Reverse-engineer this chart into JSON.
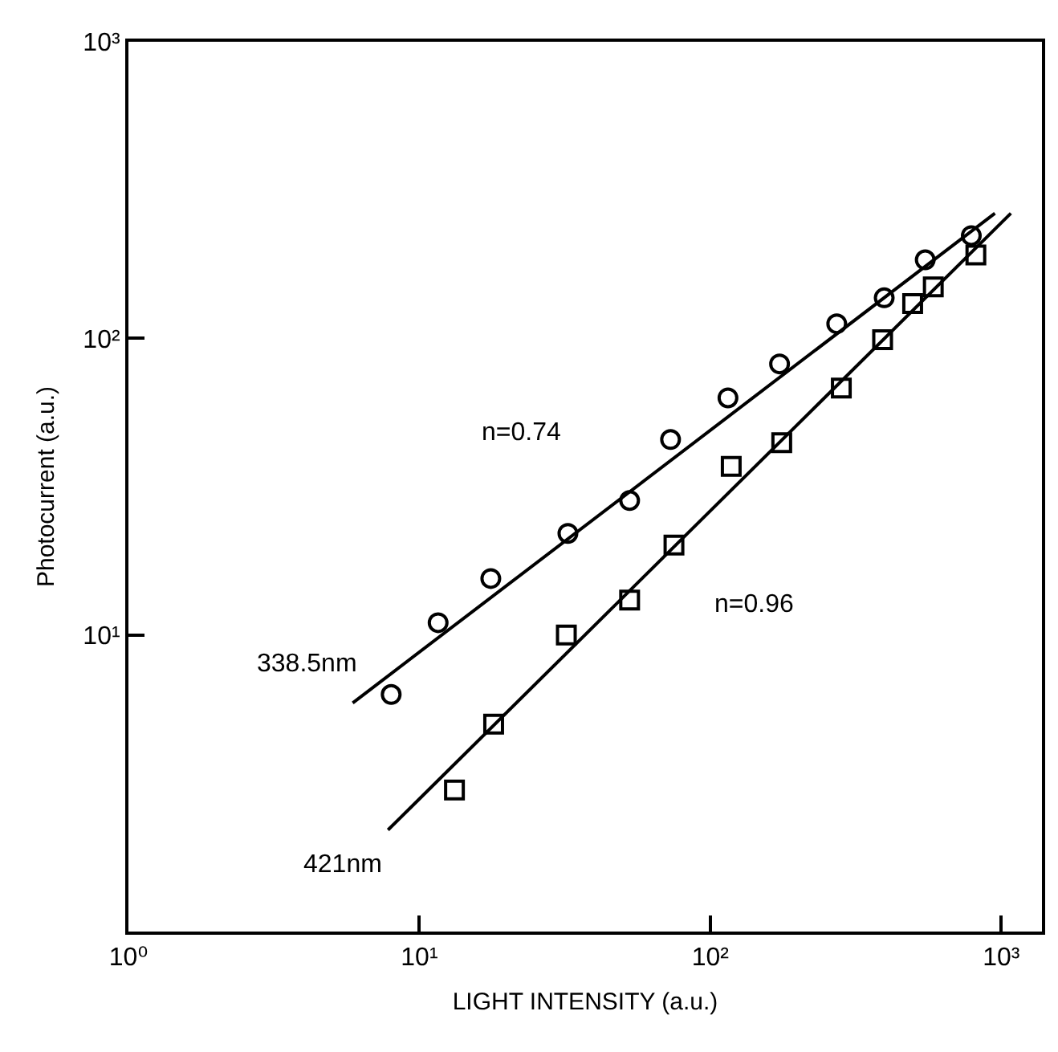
{
  "chart_data": {
    "type": "scatter",
    "xlabel": "LIGHT INTENSITY (a.u.)",
    "ylabel": "Photocurrent (a.u.)",
    "log": "xy",
    "grid": false,
    "xlim": [
      1,
      1380
    ],
    "ylim": [
      1,
      1000
    ],
    "xticks": [
      {
        "value": 1,
        "label": "10⁰"
      },
      {
        "value": 10,
        "label": "10¹"
      },
      {
        "value": 100,
        "label": "10²"
      },
      {
        "value": 1000,
        "label": "10³"
      }
    ],
    "yticks": [
      {
        "value": 10,
        "label": "10¹"
      },
      {
        "value": 100,
        "label": "10²"
      },
      {
        "value": 1000,
        "label": "10³"
      }
    ],
    "series": [
      {
        "marker": "circle",
        "color": "#000000",
        "x": [
          8.0,
          11.6,
          17.6,
          32.4,
          52.8,
          73,
          115,
          173,
          272,
          396,
          548,
          789
        ],
        "values": [
          6.3,
          11,
          15.5,
          22,
          28.4,
          45.6,
          63,
          82,
          112,
          137,
          184,
          222
        ]
      },
      {
        "marker": "square",
        "color": "#000000",
        "x": [
          13.2,
          18,
          32,
          52.8,
          75,
          118,
          176,
          282,
          391,
          496,
          584,
          818
        ],
        "values": [
          3.0,
          5.0,
          10,
          13.1,
          20.1,
          37,
          44.5,
          68,
          99,
          131,
          149,
          191
        ]
      },
      {
        "type": "line",
        "name": "338.5nm",
        "marker": "none",
        "line_style": "solid",
        "color": "#000000",
        "x": [
          5.9,
          951
        ],
        "values": [
          5.9,
          264
        ]
      },
      {
        "type": "line",
        "name": "421nm",
        "marker": "none",
        "line_style": "solid",
        "color": "#000000",
        "x": [
          7.8,
          1079
        ],
        "values": [
          2.2,
          264
        ]
      }
    ],
    "annotations": [
      "n=0.74",
      "n=0.96"
    ]
  }
}
